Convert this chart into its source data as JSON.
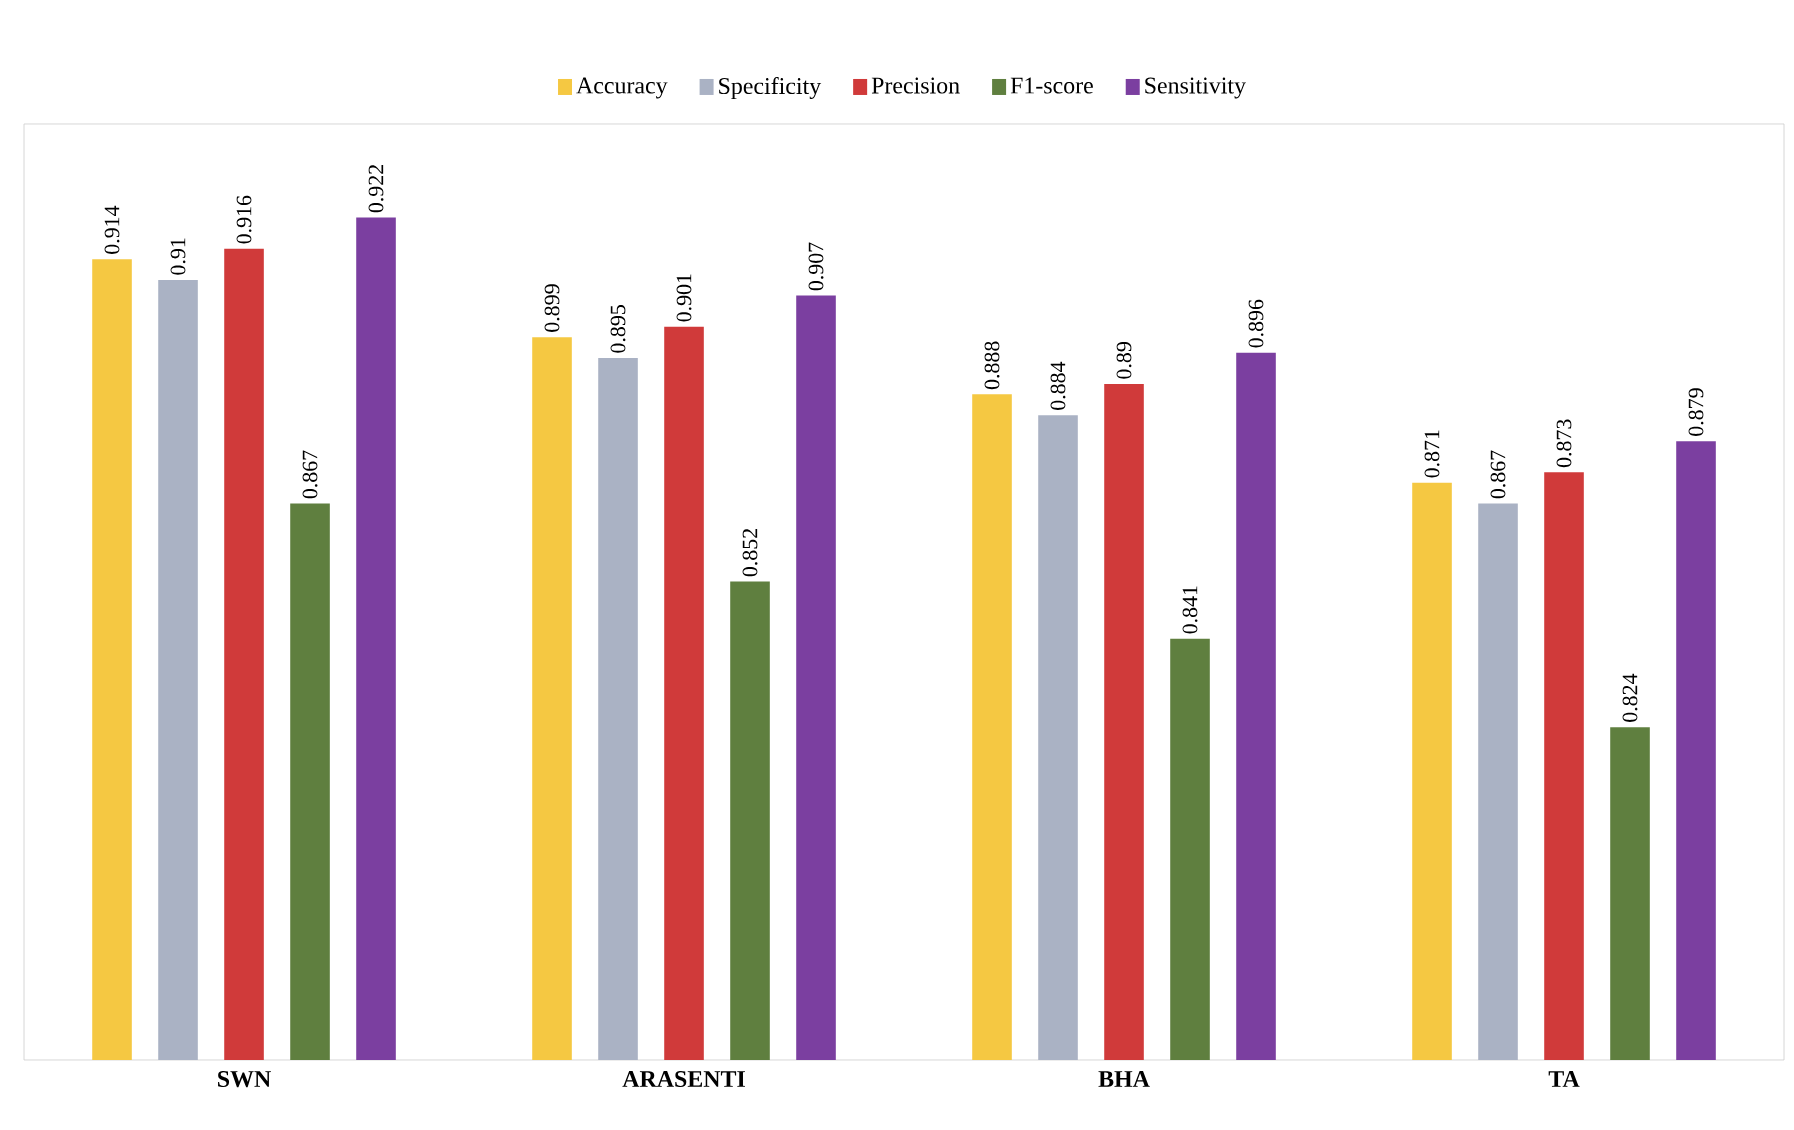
{
  "chart_data": {
    "type": "bar",
    "categories": [
      "SWN",
      "ARASENTI",
      "BHA",
      "TA"
    ],
    "series": [
      {
        "name": "Accuracy",
        "color": "#f5c842",
        "values": [
          0.914,
          0.899,
          0.888,
          0.871
        ]
      },
      {
        "name": "Specificity",
        "color": "#aab2c4",
        "values": [
          0.91,
          0.895,
          0.884,
          0.867
        ]
      },
      {
        "name": "Precision",
        "color": "#d03a3a",
        "values": [
          0.916,
          0.901,
          0.89,
          0.873
        ]
      },
      {
        "name": "F1-score",
        "color": "#5f7f3f",
        "values": [
          0.867,
          0.852,
          0.841,
          0.824
        ]
      },
      {
        "name": "Sensitivity",
        "color": "#7b3fa0",
        "values": [
          0.922,
          0.907,
          0.896,
          0.879
        ]
      }
    ],
    "ylim": [
      0.76,
      0.94
    ],
    "data_labels": true,
    "legend": "top",
    "tick_labels": "x"
  }
}
